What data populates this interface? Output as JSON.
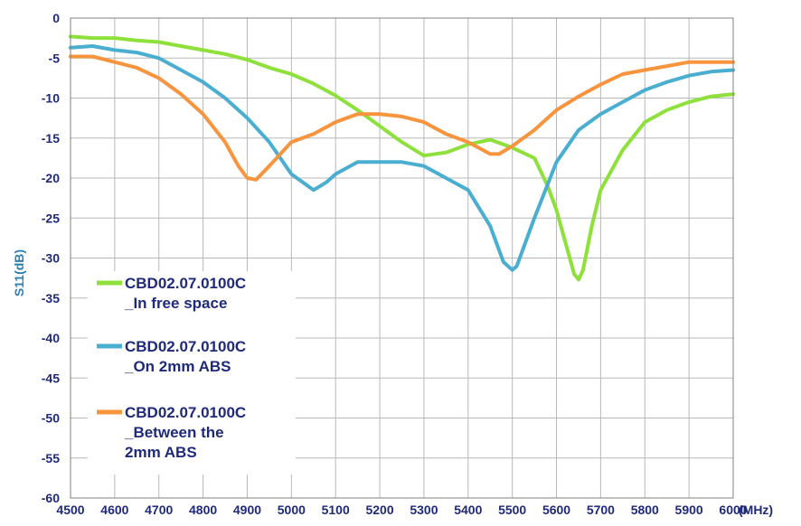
{
  "chart_data": {
    "type": "line",
    "title": "",
    "xlabel": "",
    "x_unit": "(MHz)",
    "ylabel": "S11(dB)",
    "xlim": [
      4500,
      6000
    ],
    "ylim": [
      -60,
      0
    ],
    "x_ticks": [
      4500,
      4600,
      4700,
      4800,
      4900,
      5000,
      5100,
      5200,
      5300,
      5400,
      5500,
      5600,
      5700,
      5800,
      5900,
      6000
    ],
    "y_ticks": [
      0,
      -5,
      -10,
      -15,
      -20,
      -25,
      -30,
      -35,
      -40,
      -45,
      -50,
      -55,
      -60
    ],
    "grid": true,
    "legend_position": "bottom-left",
    "series": [
      {
        "name": "CBD02.07.0100C _In free space",
        "legend_lines": [
          "CBD02.07.0100C",
          "_In free space"
        ],
        "color": "#8ee03a",
        "x": [
          4500,
          4550,
          4600,
          4650,
          4700,
          4750,
          4800,
          4850,
          4900,
          4950,
          5000,
          5050,
          5100,
          5150,
          5200,
          5250,
          5300,
          5350,
          5400,
          5450,
          5500,
          5550,
          5580,
          5600,
          5620,
          5640,
          5650,
          5660,
          5680,
          5700,
          5750,
          5800,
          5850,
          5900,
          5950,
          6000
        ],
        "values": [
          -2.3,
          -2.5,
          -2.5,
          -2.8,
          -3.0,
          -3.5,
          -4.0,
          -4.5,
          -5.2,
          -6.2,
          -7.0,
          -8.2,
          -9.7,
          -11.5,
          -13.5,
          -15.5,
          -17.2,
          -16.8,
          -15.8,
          -15.2,
          -16.2,
          -17.5,
          -21.0,
          -24.0,
          -28.0,
          -32.0,
          -32.7,
          -31.5,
          -26.0,
          -21.5,
          -16.5,
          -13.0,
          -11.5,
          -10.5,
          -9.8,
          -9.5
        ]
      },
      {
        "name": "CBD02.07.0100C _On 2mm ABS",
        "legend_lines": [
          "CBD02.07.0100C",
          "_On 2mm ABS"
        ],
        "color": "#4aaed0",
        "x": [
          4500,
          4550,
          4600,
          4650,
          4700,
          4750,
          4800,
          4850,
          4900,
          4950,
          5000,
          5050,
          5080,
          5100,
          5150,
          5200,
          5250,
          5300,
          5350,
          5400,
          5450,
          5480,
          5500,
          5510,
          5550,
          5600,
          5650,
          5700,
          5750,
          5800,
          5850,
          5900,
          5950,
          6000
        ],
        "values": [
          -3.7,
          -3.5,
          -4.0,
          -4.3,
          -5.0,
          -6.5,
          -8.0,
          -10.0,
          -12.5,
          -15.5,
          -19.5,
          -21.5,
          -20.5,
          -19.5,
          -18.0,
          -18.0,
          -18.0,
          -18.5,
          -20.0,
          -21.5,
          -26.0,
          -30.5,
          -31.5,
          -31.0,
          -25.0,
          -18.0,
          -14.0,
          -12.0,
          -10.5,
          -9.0,
          -8.0,
          -7.2,
          -6.7,
          -6.5
        ]
      },
      {
        "name": "CBD02.07.0100C _Between the 2mm ABS",
        "legend_lines": [
          "CBD02.07.0100C",
          "_Between the",
          "2mm ABS"
        ],
        "color": "#f7943d",
        "x": [
          4500,
          4550,
          4600,
          4650,
          4700,
          4750,
          4800,
          4850,
          4880,
          4900,
          4920,
          4950,
          5000,
          5050,
          5100,
          5150,
          5200,
          5250,
          5300,
          5350,
          5400,
          5450,
          5470,
          5500,
          5550,
          5600,
          5650,
          5700,
          5750,
          5800,
          5850,
          5900,
          5950,
          6000
        ],
        "values": [
          -4.8,
          -4.8,
          -5.5,
          -6.2,
          -7.5,
          -9.5,
          -12.0,
          -15.5,
          -18.5,
          -20.0,
          -20.2,
          -18.5,
          -15.5,
          -14.5,
          -13.0,
          -12.0,
          -12.0,
          -12.3,
          -13.0,
          -14.5,
          -15.5,
          -17.0,
          -17.0,
          -16.0,
          -14.0,
          -11.5,
          -9.8,
          -8.3,
          -7.0,
          -6.5,
          -6.0,
          -5.5,
          -5.5,
          -5.5
        ]
      }
    ]
  }
}
